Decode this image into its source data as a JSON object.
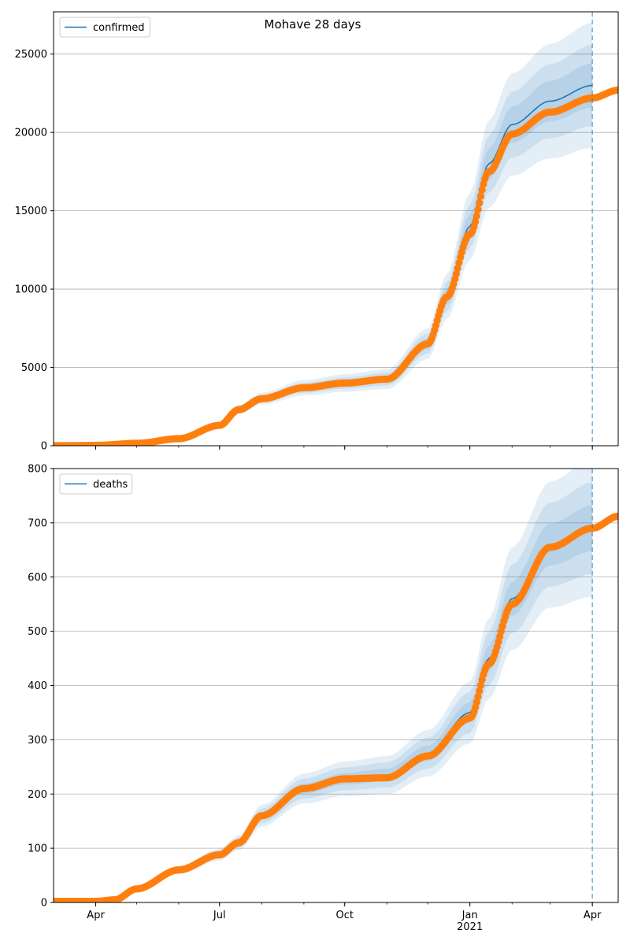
{
  "figure": {
    "title": "Mohave 28 days"
  },
  "colors": {
    "model": "#1f77b4",
    "observed": "#ff7f0e",
    "band": "#1f77b4",
    "grid": "#b0b0b0"
  },
  "chart_data": [
    {
      "type": "line",
      "name": "confirmed-panel",
      "legend": [
        "confirmed"
      ],
      "legend_position": "top-left",
      "grid": "horizontal",
      "x_dates": [
        "2020-03-01",
        "2021-04-20"
      ],
      "ylim": [
        0,
        27700
      ],
      "yticks": [
        0,
        5000,
        10000,
        15000,
        20000,
        25000
      ],
      "forecast_start": "2021-04-01",
      "model_series": {
        "name": "confirmed",
        "points": [
          [
            "2020-03-01",
            0
          ],
          [
            "2020-04-01",
            20
          ],
          [
            "2020-05-01",
            150
          ],
          [
            "2020-06-01",
            500
          ],
          [
            "2020-07-01",
            1300
          ],
          [
            "2020-07-15",
            2300
          ],
          [
            "2020-08-01",
            3000
          ],
          [
            "2020-09-01",
            3700
          ],
          [
            "2020-10-01",
            4000
          ],
          [
            "2020-11-01",
            4250
          ],
          [
            "2020-12-01",
            6500
          ],
          [
            "2020-12-15",
            9500
          ],
          [
            "2021-01-01",
            14000
          ],
          [
            "2021-01-15",
            18000
          ],
          [
            "2021-02-01",
            20500
          ],
          [
            "2021-03-01",
            22000
          ],
          [
            "2021-04-01",
            23000
          ]
        ]
      },
      "observed_series": {
        "name": "observed",
        "points": [
          [
            "2020-03-01",
            0
          ],
          [
            "2020-04-01",
            20
          ],
          [
            "2020-05-01",
            150
          ],
          [
            "2020-06-01",
            450
          ],
          [
            "2020-07-01",
            1300
          ],
          [
            "2020-07-15",
            2300
          ],
          [
            "2020-08-01",
            3000
          ],
          [
            "2020-09-01",
            3700
          ],
          [
            "2020-10-01",
            4000
          ],
          [
            "2020-11-01",
            4250
          ],
          [
            "2020-12-01",
            6500
          ],
          [
            "2020-12-15",
            9500
          ],
          [
            "2021-01-01",
            13500
          ],
          [
            "2021-01-15",
            17500
          ],
          [
            "2021-02-01",
            19900
          ],
          [
            "2021-03-01",
            21300
          ],
          [
            "2021-04-01",
            22200
          ],
          [
            "2021-04-20",
            22700
          ]
        ]
      },
      "band_widths": [
        0.06,
        0.11,
        0.17
      ]
    },
    {
      "type": "line",
      "name": "deaths-panel",
      "legend": [
        "deaths"
      ],
      "legend_position": "top-left",
      "grid": "horizontal",
      "x_dates": [
        "2020-03-01",
        "2021-04-20"
      ],
      "ylim": [
        0,
        800
      ],
      "yticks": [
        0,
        100,
        200,
        300,
        400,
        500,
        600,
        700,
        800
      ],
      "xticks": [
        {
          "date": "2020-04-01",
          "label": "Apr"
        },
        {
          "date": "2020-07-01",
          "label": "Jul"
        },
        {
          "date": "2020-10-01",
          "label": "Oct"
        },
        {
          "date": "2021-01-01",
          "label": "Jan\n2021"
        },
        {
          "date": "2021-04-01",
          "label": "Apr"
        }
      ],
      "forecast_start": "2021-04-01",
      "model_series": {
        "name": "deaths",
        "points": [
          [
            "2020-03-01",
            2
          ],
          [
            "2020-04-01",
            2
          ],
          [
            "2020-04-15",
            5
          ],
          [
            "2020-05-01",
            22
          ],
          [
            "2020-06-01",
            60
          ],
          [
            "2020-07-01",
            88
          ],
          [
            "2020-07-15",
            110
          ],
          [
            "2020-08-01",
            160
          ],
          [
            "2020-09-01",
            210
          ],
          [
            "2020-10-01",
            228
          ],
          [
            "2020-11-01",
            235
          ],
          [
            "2020-12-01",
            275
          ],
          [
            "2021-01-01",
            350
          ],
          [
            "2021-01-15",
            450
          ],
          [
            "2021-02-01",
            560
          ],
          [
            "2021-03-01",
            660
          ],
          [
            "2021-04-01",
            690
          ],
          [
            "2021-04-20",
            705
          ]
        ]
      },
      "observed_series": {
        "name": "observed",
        "points": [
          [
            "2020-03-01",
            2
          ],
          [
            "2020-04-01",
            2
          ],
          [
            "2020-04-15",
            5
          ],
          [
            "2020-05-01",
            25
          ],
          [
            "2020-06-01",
            60
          ],
          [
            "2020-07-01",
            88
          ],
          [
            "2020-07-15",
            110
          ],
          [
            "2020-08-01",
            160
          ],
          [
            "2020-09-01",
            210
          ],
          [
            "2020-10-01",
            228
          ],
          [
            "2020-11-01",
            230
          ],
          [
            "2020-12-01",
            270
          ],
          [
            "2021-01-01",
            340
          ],
          [
            "2021-01-15",
            440
          ],
          [
            "2021-02-01",
            550
          ],
          [
            "2021-03-01",
            655
          ],
          [
            "2021-04-01",
            690
          ],
          [
            "2021-04-20",
            712
          ]
        ]
      },
      "band_widths": [
        0.06,
        0.12,
        0.18
      ]
    }
  ]
}
